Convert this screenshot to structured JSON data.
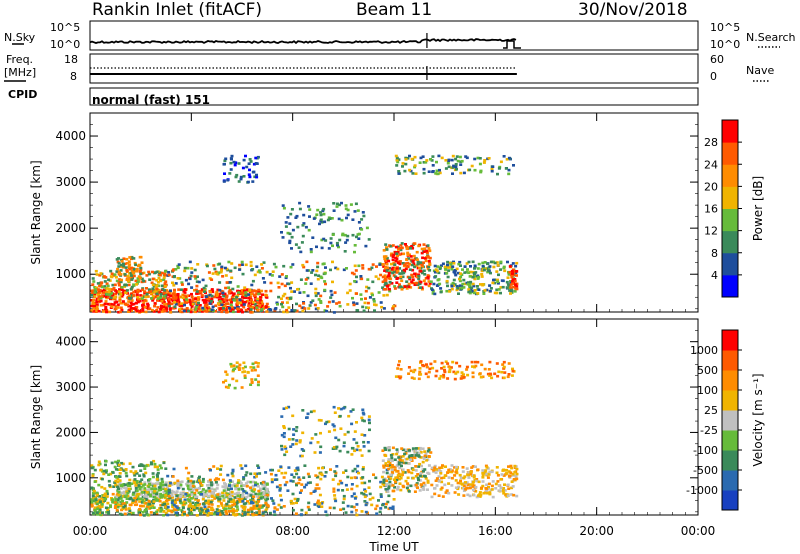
{
  "header": {
    "title": "Rankin Inlet (fitACF)",
    "beam": "Beam 11",
    "date": "30/Nov/2018"
  },
  "strip": {
    "nsky_label": "N.Sky",
    "nsky_ticks": [
      "10^5",
      "10^0"
    ],
    "nsearch_label": "N.Search",
    "nsearch_ticks": [
      "10^5",
      "10^0"
    ],
    "freq_label": "Freq.",
    "freq_unit": "[MHz]",
    "freq_ticks": [
      "18",
      "8"
    ],
    "nave_label": "Nave",
    "nave_ticks": [
      "60",
      "0"
    ],
    "cpid_label": "CPID",
    "cpid_value": "normal (fast) 151"
  },
  "chart_data": [
    {
      "type": "heatmap",
      "name": "power",
      "ylabel": "Slant Range [km]",
      "ylim": [
        180,
        4500
      ],
      "yticks": [
        "1000",
        "2000",
        "3000",
        "4000"
      ],
      "xlim": [
        0,
        24
      ],
      "xticks": [
        "00:00",
        "04:00",
        "08:00",
        "12:00",
        "16:00",
        "20:00",
        "00:00"
      ],
      "xlabel": "Time UT",
      "data_end_hour": 16.85,
      "colorbar": {
        "label": "Power [dB]",
        "ticks": [
          "28",
          "24",
          "20",
          "16",
          "12",
          "8",
          "4"
        ],
        "colors": [
          "#0000ff",
          "#1e4e9c",
          "#3a8a5a",
          "#66bb3a",
          "#f0b400",
          "#ff8c00",
          "#ff5a00",
          "#ff0000"
        ]
      }
    },
    {
      "type": "heatmap",
      "name": "velocity",
      "ylabel": "Slant Range [km]",
      "ylim": [
        180,
        4500
      ],
      "yticks": [
        "1000",
        "2000",
        "3000",
        "4000"
      ],
      "xlim": [
        0,
        24
      ],
      "xticks": [
        "00:00",
        "04:00",
        "08:00",
        "12:00",
        "16:00",
        "20:00",
        "00:00"
      ],
      "xlabel": "Time UT",
      "data_end_hour": 16.85,
      "colorbar": {
        "label": "Velocity [m s⁻¹]",
        "ticks": [
          "1000",
          "500",
          "100",
          "25",
          "-25",
          "-100",
          "-500",
          "-1000"
        ],
        "colors": [
          "#1840c0",
          "#2a6ab0",
          "#3a8a5a",
          "#66bb3a",
          "#c0c0c0",
          "#f0b400",
          "#ff8c00",
          "#ff5a00",
          "#ff0000"
        ]
      }
    }
  ]
}
